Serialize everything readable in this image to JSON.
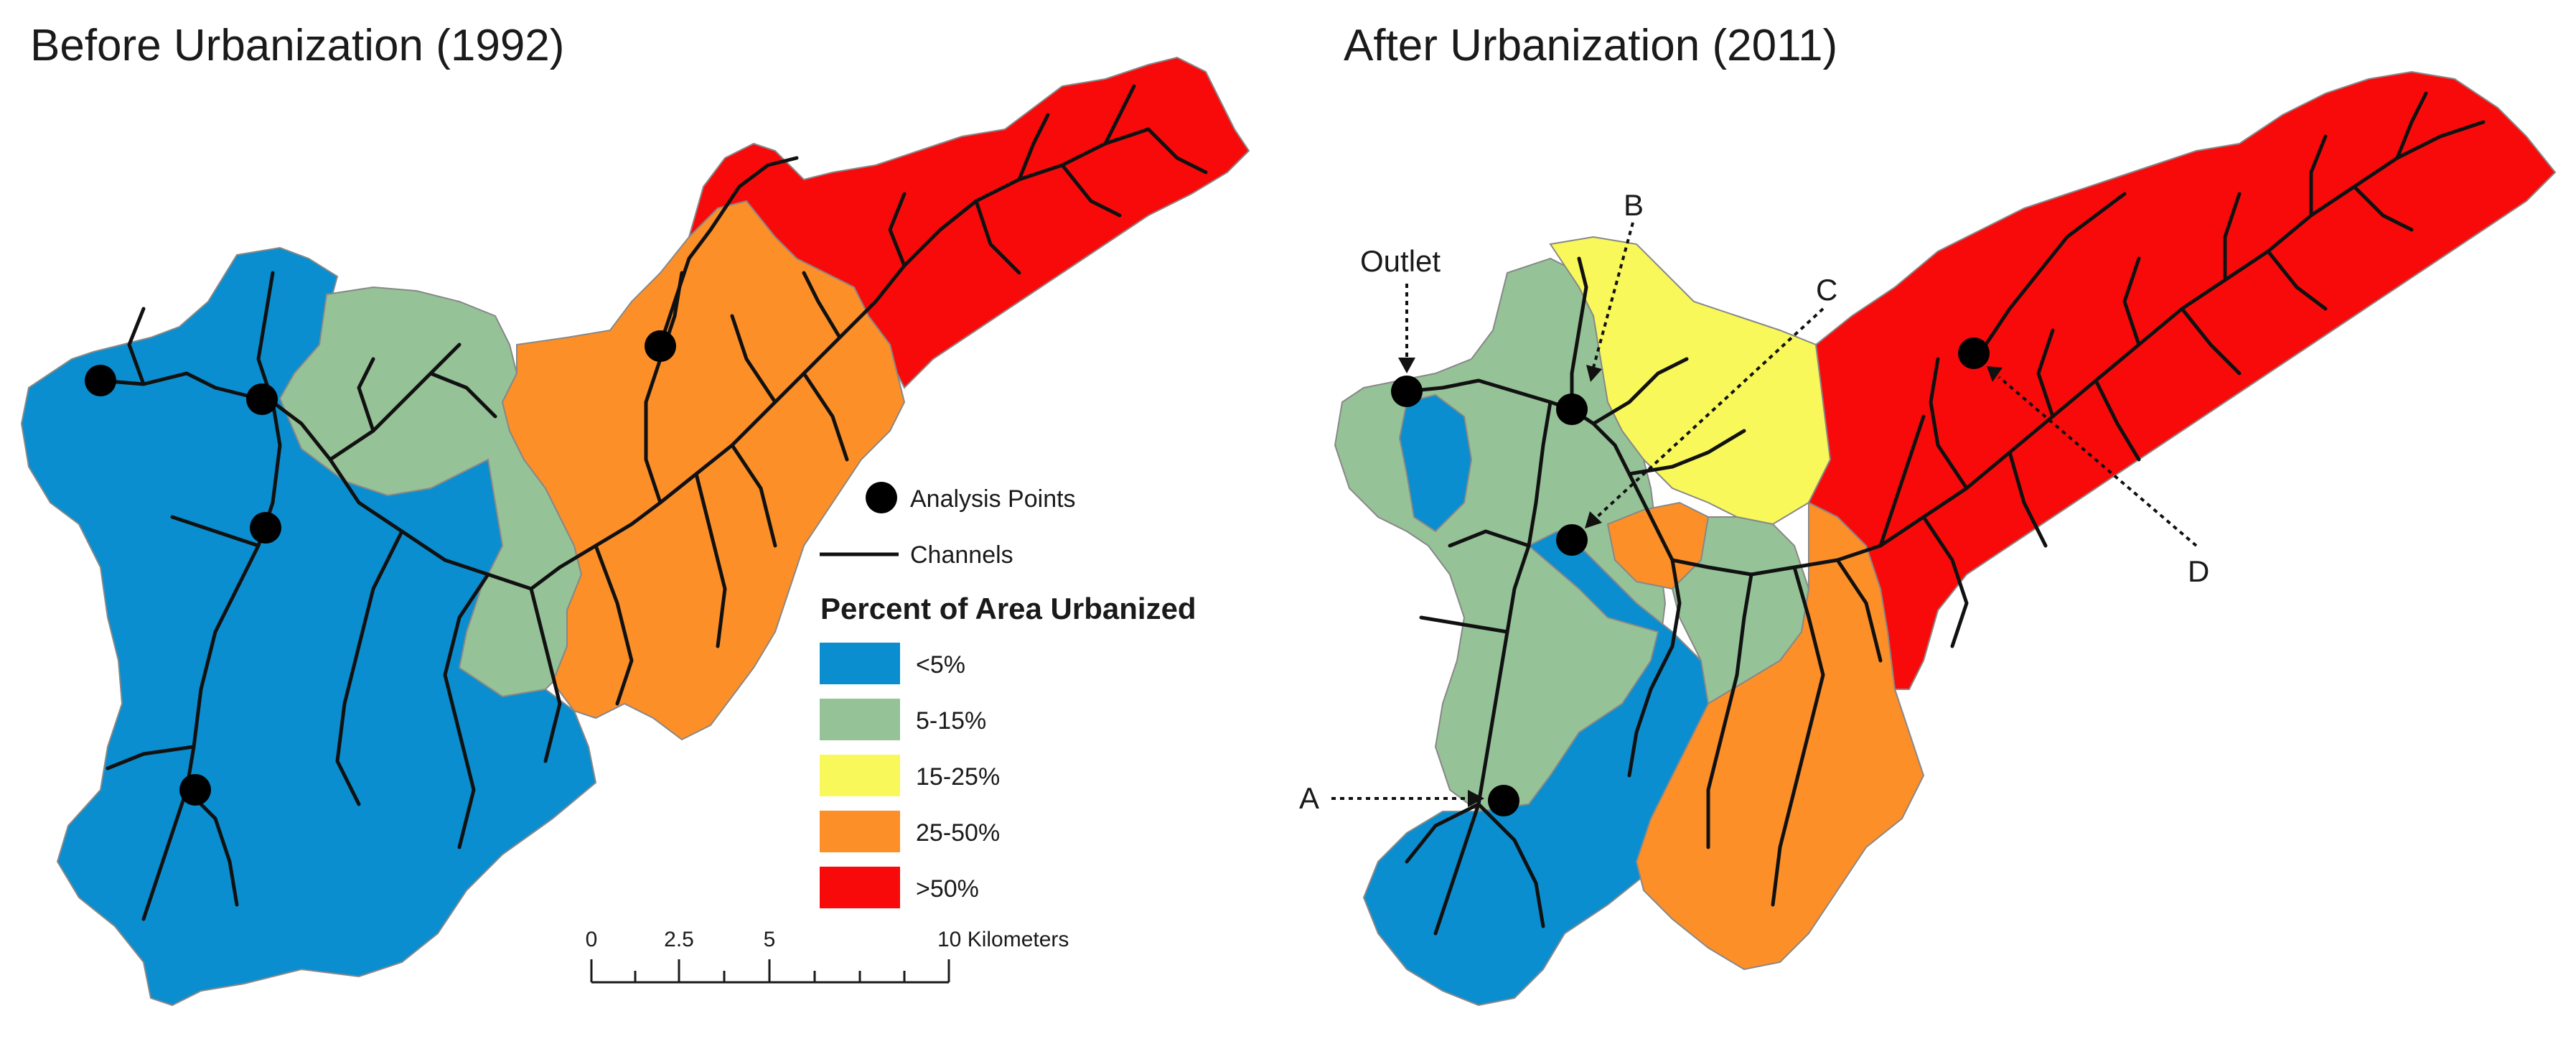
{
  "titles": {
    "before": "Before Urbanization (1992)",
    "after": "After Urbanization (2011)"
  },
  "legend": {
    "analysis_points_label": "Analysis Points",
    "channels_label": "Channels",
    "heading": "Percent of Area Urbanized",
    "classes": [
      {
        "label": "<5%",
        "color": "#0a8ecf"
      },
      {
        "label": "5-15%",
        "color": "#95c297"
      },
      {
        "label": "15-25%",
        "color": "#f8f85a"
      },
      {
        "label": "25-50%",
        "color": "#fd8f28"
      },
      {
        "label": ">50%",
        "color": "#f90a0a"
      }
    ]
  },
  "scale_bar": {
    "ticks": [
      "0",
      "2.5",
      "5",
      "10 Kilometers"
    ]
  },
  "annotations": {
    "outlet": "Outlet",
    "a": "A",
    "b": "B",
    "c": "C",
    "d": "D"
  }
}
